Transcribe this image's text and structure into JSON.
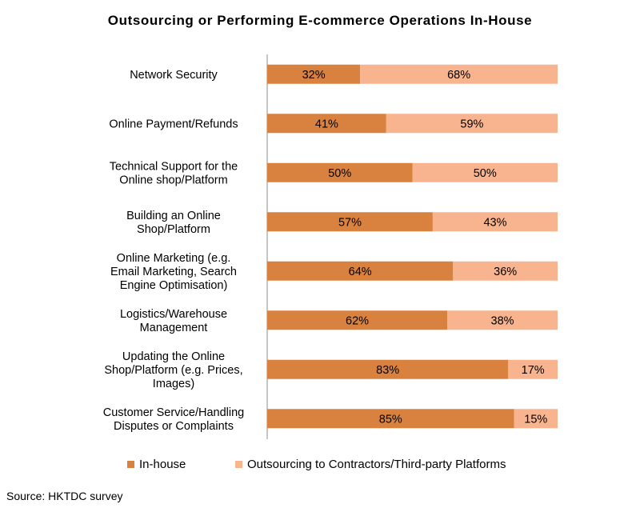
{
  "chart_data": {
    "type": "bar",
    "orientation": "horizontal",
    "stacked": "percent",
    "title": "Outsourcing or Performing E-commerce Operations In-House",
    "categories": [
      [
        "Network Security"
      ],
      [
        "Online Payment/Refunds"
      ],
      [
        "Technical Support for the",
        "Online shop/Platform"
      ],
      [
        "Building an Online",
        "Shop/Platform"
      ],
      [
        "Online Marketing (e.g.",
        "Email Marketing, Search",
        "Engine Optimisation)"
      ],
      [
        "Logistics/Warehouse",
        "Management"
      ],
      [
        "Updating the Online",
        "Shop/Platform (e.g. Prices,",
        "Images)"
      ],
      [
        "Customer Service/Handling",
        "Disputes or Complaints"
      ]
    ],
    "series": [
      {
        "name": "In-house",
        "color": "#D9823F",
        "values": [
          32,
          41,
          50,
          57,
          64,
          62,
          83,
          85
        ],
        "labels": [
          "32%",
          "41%",
          "50%",
          "57%",
          "64%",
          "62%",
          "83%",
          "85%"
        ]
      },
      {
        "name": "Outsourcing to Contractors/Third-party Platforms",
        "color": "#F8B48F",
        "values": [
          68,
          59,
          50,
          43,
          36,
          38,
          17,
          15
        ],
        "labels": [
          "68%",
          "59%",
          "50%",
          "43%",
          "36%",
          "38%",
          "17%",
          "15%"
        ]
      }
    ],
    "xlim": [
      0,
      100
    ],
    "grid": false,
    "legend_position": "bottom"
  },
  "source": "Source: HKTDC survey"
}
